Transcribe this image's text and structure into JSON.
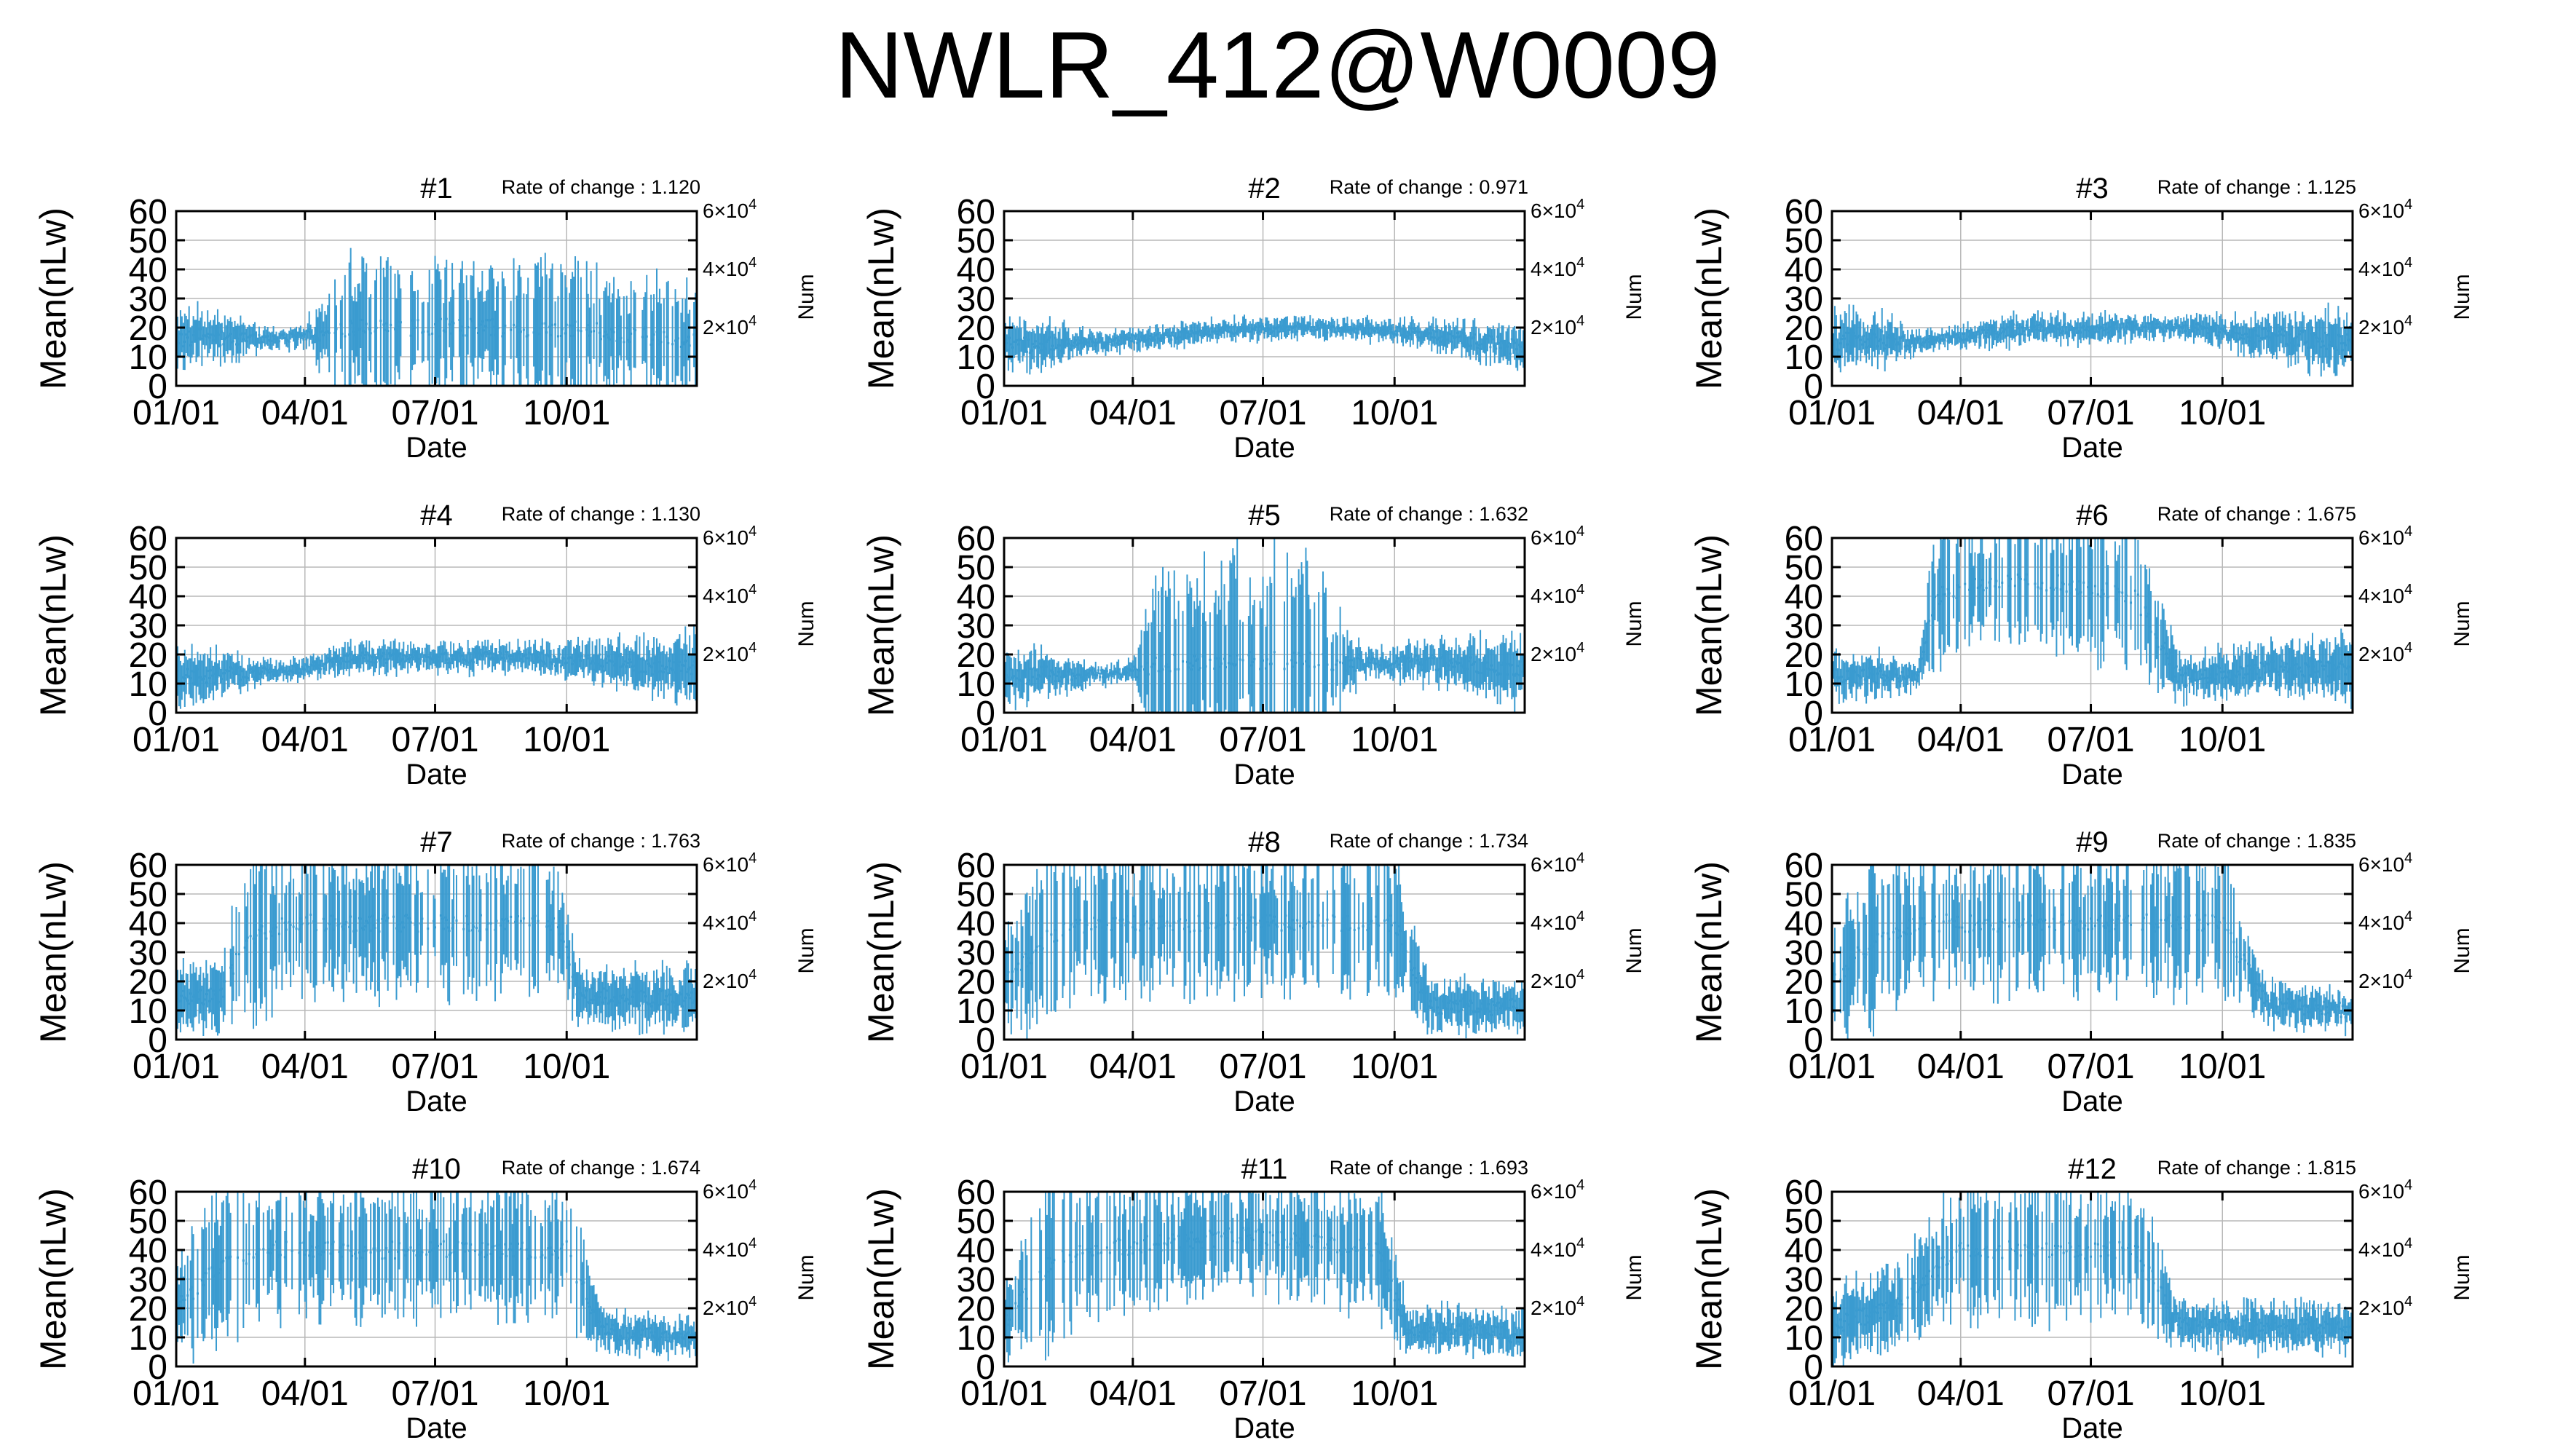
{
  "title": "NWLR_412@W0009",
  "colors": {
    "series": "#3a9bd0",
    "grid": "#b8b8b8",
    "axis": "#000000"
  },
  "shared_axes": {
    "ylabel": "Mean(nLw)",
    "xlabel": "Date",
    "y2label": "Num",
    "yticks": [
      "0",
      "10",
      "20",
      "30",
      "40",
      "50",
      "60"
    ],
    "ylim": [
      0,
      60
    ],
    "xlim": [
      "2009-01-01",
      "2009-12-31"
    ],
    "xticks": [
      {
        "date": "2009-01-01",
        "label": "01/01"
      },
      {
        "date": "2009-04-01",
        "label": "04/01"
      },
      {
        "date": "2009-07-01",
        "label": "07/01"
      },
      {
        "date": "2009-10-01",
        "label": "10/01"
      }
    ],
    "y2ticks": [
      {
        "value": 20000,
        "mant": "2",
        "exp": "4"
      },
      {
        "value": 40000,
        "mant": "4",
        "exp": "4"
      },
      {
        "value": 60000,
        "mant": "6",
        "exp": "4"
      }
    ],
    "y2lim": [
      0,
      60000
    ],
    "grid": true
  },
  "chart_data": [
    {
      "type": "errorbar",
      "panel": "#1",
      "rate_label": "Rate of change : 1.120",
      "profile": [
        [
          "2009-01-01",
          16,
          8
        ],
        [
          "2009-02-01",
          17,
          7
        ],
        [
          "2009-03-01",
          16,
          3
        ],
        [
          "2009-04-01",
          17,
          3
        ],
        [
          "2009-05-01",
          20,
          20
        ],
        [
          "2009-07-01",
          20,
          19
        ],
        [
          "2009-10-01",
          20,
          19
        ],
        [
          "2009-11-01",
          18,
          17
        ],
        [
          "2009-12-31",
          16,
          17
        ]
      ]
    },
    {
      "type": "errorbar",
      "panel": "#2",
      "rate_label": "Rate of change : 0.971",
      "profile": [
        [
          "2009-01-01",
          14,
          7
        ],
        [
          "2009-02-01",
          14,
          6
        ],
        [
          "2009-03-01",
          15,
          3
        ],
        [
          "2009-04-01",
          16,
          3
        ],
        [
          "2009-06-01",
          19,
          3
        ],
        [
          "2009-08-01",
          20,
          3
        ],
        [
          "2009-10-01",
          19,
          3
        ],
        [
          "2009-11-01",
          17,
          4
        ],
        [
          "2009-12-31",
          13,
          6
        ]
      ]
    },
    {
      "type": "errorbar",
      "panel": "#3",
      "rate_label": "Rate of change : 1.125",
      "profile": [
        [
          "2009-01-01",
          15,
          8
        ],
        [
          "2009-02-01",
          16,
          7
        ],
        [
          "2009-03-01",
          15,
          3
        ],
        [
          "2009-04-01",
          17,
          3
        ],
        [
          "2009-05-01",
          19,
          4
        ],
        [
          "2009-07-01",
          20,
          4
        ],
        [
          "2009-09-01",
          20,
          3
        ],
        [
          "2009-11-01",
          17,
          6
        ],
        [
          "2009-12-31",
          15,
          10
        ]
      ]
    },
    {
      "type": "errorbar",
      "panel": "#4",
      "rate_label": "Rate of change : 1.130",
      "profile": [
        [
          "2009-01-01",
          12,
          8
        ],
        [
          "2009-02-01",
          13,
          6
        ],
        [
          "2009-03-01",
          14,
          3
        ],
        [
          "2009-04-01",
          15,
          3
        ],
        [
          "2009-05-01",
          19,
          4
        ],
        [
          "2009-07-01",
          19,
          4
        ],
        [
          "2009-09-01",
          19,
          4
        ],
        [
          "2009-11-01",
          17,
          6
        ],
        [
          "2009-12-31",
          15,
          10
        ]
      ]
    },
    {
      "type": "errorbar",
      "panel": "#5",
      "rate_label": "Rate of change : 1.632",
      "profile": [
        [
          "2009-01-01",
          12,
          8
        ],
        [
          "2009-02-01",
          13,
          6
        ],
        [
          "2009-03-01",
          13,
          3
        ],
        [
          "2009-04-01",
          14,
          3
        ],
        [
          "2009-04-20",
          17,
          30
        ],
        [
          "2009-06-01",
          18,
          32
        ],
        [
          "2009-08-01",
          18,
          30
        ],
        [
          "2009-09-10",
          17,
          4
        ],
        [
          "2009-11-01",
          17,
          6
        ],
        [
          "2009-12-31",
          15,
          10
        ]
      ]
    },
    {
      "type": "errorbar",
      "panel": "#6",
      "rate_label": "Rate of change : 1.675",
      "profile": [
        [
          "2009-01-01",
          12,
          7
        ],
        [
          "2009-02-01",
          13,
          6
        ],
        [
          "2009-03-01",
          13,
          4
        ],
        [
          "2009-03-15",
          40,
          20
        ],
        [
          "2009-04-15",
          45,
          15
        ],
        [
          "2009-06-01",
          45,
          20
        ],
        [
          "2009-08-01",
          40,
          20
        ],
        [
          "2009-09-01",
          12,
          6
        ],
        [
          "2009-11-01",
          15,
          7
        ],
        [
          "2009-12-31",
          15,
          9
        ]
      ]
    },
    {
      "type": "errorbar",
      "panel": "#7",
      "rate_label": "Rate of change : 1.763",
      "profile": [
        [
          "2009-01-01",
          14,
          10
        ],
        [
          "2009-02-01",
          15,
          9
        ],
        [
          "2009-02-20",
          35,
          25
        ],
        [
          "2009-03-25",
          40,
          20
        ],
        [
          "2009-09-25",
          40,
          20
        ],
        [
          "2009-10-10",
          15,
          8
        ],
        [
          "2009-12-31",
          14,
          9
        ]
      ]
    },
    {
      "type": "errorbar",
      "panel": "#8",
      "rate_label": "Rate of change : 1.734",
      "profile": [
        [
          "2009-01-01",
          20,
          15
        ],
        [
          "2009-02-01",
          35,
          25
        ],
        [
          "2009-03-01",
          40,
          20
        ],
        [
          "2009-10-01",
          40,
          20
        ],
        [
          "2009-10-25",
          12,
          7
        ],
        [
          "2009-12-31",
          11,
          6
        ]
      ]
    },
    {
      "type": "errorbar",
      "panel": "#9",
      "rate_label": "Rate of change : 1.835",
      "profile": [
        [
          "2009-01-01",
          20,
          18
        ],
        [
          "2009-02-01",
          35,
          25
        ],
        [
          "2009-03-01",
          40,
          20
        ],
        [
          "2009-10-01",
          40,
          20
        ],
        [
          "2009-11-01",
          12,
          6
        ],
        [
          "2009-12-31",
          10,
          5
        ]
      ]
    },
    {
      "type": "errorbar",
      "panel": "#10",
      "rate_label": "Rate of change : 1.674",
      "profile": [
        [
          "2009-01-01",
          20,
          15
        ],
        [
          "2009-02-01",
          35,
          25
        ],
        [
          "2009-03-01",
          40,
          20
        ],
        [
          "2009-10-01",
          40,
          20
        ],
        [
          "2009-10-25",
          12,
          6
        ],
        [
          "2009-12-31",
          10,
          5
        ]
      ]
    },
    {
      "type": "errorbar",
      "panel": "#11",
      "rate_label": "Rate of change : 1.693",
      "profile": [
        [
          "2009-01-01",
          15,
          10
        ],
        [
          "2009-02-01",
          35,
          25
        ],
        [
          "2009-03-01",
          40,
          20
        ],
        [
          "2009-06-20",
          45,
          15
        ],
        [
          "2009-09-20",
          40,
          20
        ],
        [
          "2009-10-10",
          13,
          6
        ],
        [
          "2009-12-31",
          11,
          6
        ]
      ]
    },
    {
      "type": "errorbar",
      "panel": "#12",
      "rate_label": "Rate of change : 1.815",
      "profile": [
        [
          "2009-01-01",
          14,
          10
        ],
        [
          "2009-02-15",
          20,
          12
        ],
        [
          "2009-04-01",
          40,
          20
        ],
        [
          "2009-06-01",
          40,
          20
        ],
        [
          "2009-08-01",
          40,
          20
        ],
        [
          "2009-09-01",
          14,
          6
        ],
        [
          "2009-12-31",
          13,
          7
        ]
      ]
    }
  ]
}
